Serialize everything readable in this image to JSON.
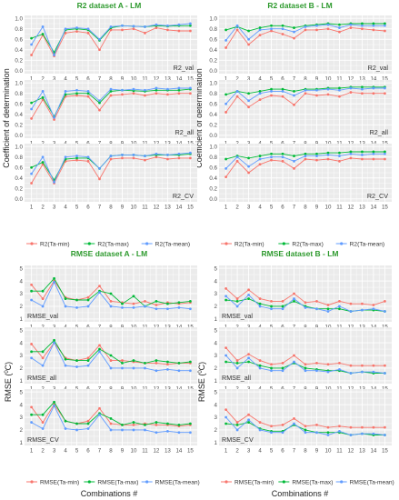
{
  "colors": {
    "min": "#F8766D",
    "max": "#00BA38",
    "mean": "#619CFF",
    "panel": "#EBEBEB",
    "grid": "#FFFFFF",
    "title": "#2E9A2E"
  },
  "labels": {
    "r2_ylabel": "Coefficient of determination",
    "rmse_ylabel_prefix": "RMSE (",
    "rmse_ylabel_sup": "0",
    "rmse_ylabel_suffix": "C)",
    "xlabel": "Combinations #"
  },
  "chart_data": [
    {
      "type": "line",
      "title": "R2 dataset A - LM",
      "x": [
        1,
        2,
        3,
        4,
        5,
        6,
        7,
        8,
        9,
        10,
        11,
        12,
        13,
        14,
        15
      ],
      "ylim": [
        0,
        1.0
      ],
      "yticks": [
        0.0,
        0.2,
        0.4,
        0.6,
        0.8,
        1.0
      ],
      "yticklabels": [
        "0.0",
        "0.2",
        "0.4",
        "0.6",
        "0.8",
        "1.0"
      ],
      "legend_names": [
        "R2(Ta-min)",
        "R2(Ta-max)",
        "R2(Ta-mean)"
      ],
      "panels": [
        {
          "label": "R2_val",
          "series": [
            {
              "key": "min",
              "values": [
                0.3,
                0.68,
                0.28,
                0.72,
                0.75,
                0.72,
                0.4,
                0.78,
                0.78,
                0.8,
                0.72,
                0.82,
                0.78,
                0.76,
                0.76
              ]
            },
            {
              "key": "max",
              "values": [
                0.62,
                0.7,
                0.35,
                0.78,
                0.8,
                0.78,
                0.58,
                0.82,
                0.86,
                0.85,
                0.84,
                0.86,
                0.85,
                0.86,
                0.86
              ]
            },
            {
              "key": "mean",
              "values": [
                0.5,
                0.84,
                0.3,
                0.8,
                0.82,
                0.8,
                0.6,
                0.84,
                0.86,
                0.85,
                0.84,
                0.88,
                0.86,
                0.88,
                0.9
              ]
            }
          ]
        },
        {
          "label": "R2_all",
          "series": [
            {
              "key": "min",
              "values": [
                0.32,
                0.68,
                0.3,
                0.74,
                0.76,
                0.74,
                0.48,
                0.76,
                0.78,
                0.8,
                0.76,
                0.8,
                0.78,
                0.8,
                0.8
              ]
            },
            {
              "key": "max",
              "values": [
                0.62,
                0.72,
                0.36,
                0.78,
                0.8,
                0.8,
                0.62,
                0.84,
                0.86,
                0.85,
                0.84,
                0.86,
                0.86,
                0.86,
                0.88
              ]
            },
            {
              "key": "mean",
              "values": [
                0.5,
                0.84,
                0.34,
                0.84,
                0.86,
                0.84,
                0.66,
                0.88,
                0.86,
                0.88,
                0.86,
                0.9,
                0.88,
                0.9,
                0.9
              ]
            }
          ]
        },
        {
          "label": "R2_CV",
          "series": [
            {
              "key": "min",
              "values": [
                0.3,
                0.66,
                0.3,
                0.72,
                0.74,
                0.72,
                0.38,
                0.76,
                0.78,
                0.78,
                0.74,
                0.8,
                0.76,
                0.78,
                0.78
              ]
            },
            {
              "key": "max",
              "values": [
                0.6,
                0.7,
                0.36,
                0.76,
                0.78,
                0.78,
                0.58,
                0.82,
                0.84,
                0.84,
                0.82,
                0.84,
                0.84,
                0.84,
                0.86
              ]
            },
            {
              "key": "mean",
              "values": [
                0.48,
                0.8,
                0.32,
                0.8,
                0.82,
                0.8,
                0.58,
                0.82,
                0.84,
                0.84,
                0.82,
                0.86,
                0.84,
                0.86,
                0.88
              ]
            }
          ]
        }
      ]
    },
    {
      "type": "line",
      "title": "R2 dataset B - LM",
      "x": [
        1,
        2,
        3,
        4,
        5,
        6,
        7,
        8,
        9,
        10,
        11,
        12,
        13,
        14,
        15
      ],
      "ylim": [
        0,
        1.0
      ],
      "yticks": [
        0.0,
        0.2,
        0.4,
        0.6,
        0.8,
        1.0
      ],
      "yticklabels": [
        "0.0",
        "0.2",
        "0.4",
        "0.6",
        "0.8",
        "1.0"
      ],
      "legend_names": [
        "R2(Ta-min)",
        "R2(Ta-max)",
        "R2(Ta-mean)"
      ],
      "panels": [
        {
          "label": "R2_val",
          "series": [
            {
              "key": "min",
              "values": [
                0.44,
                0.78,
                0.5,
                0.68,
                0.76,
                0.7,
                0.62,
                0.78,
                0.78,
                0.8,
                0.74,
                0.82,
                0.8,
                0.78,
                0.76
              ]
            },
            {
              "key": "max",
              "values": [
                0.78,
                0.84,
                0.76,
                0.82,
                0.86,
                0.86,
                0.82,
                0.86,
                0.88,
                0.9,
                0.88,
                0.9,
                0.9,
                0.9,
                0.9
              ]
            },
            {
              "key": "mean",
              "values": [
                0.58,
                0.86,
                0.6,
                0.78,
                0.8,
                0.8,
                0.74,
                0.84,
                0.86,
                0.88,
                0.82,
                0.88,
                0.86,
                0.86,
                0.86
              ]
            }
          ]
        },
        {
          "label": "R2_all",
          "series": [
            {
              "key": "min",
              "values": [
                0.44,
                0.74,
                0.54,
                0.68,
                0.76,
                0.74,
                0.58,
                0.8,
                0.76,
                0.78,
                0.74,
                0.82,
                0.8,
                0.8,
                0.8
              ]
            },
            {
              "key": "max",
              "values": [
                0.78,
                0.84,
                0.8,
                0.84,
                0.88,
                0.88,
                0.84,
                0.88,
                0.88,
                0.9,
                0.9,
                0.92,
                0.92,
                0.92,
                0.92
              ]
            },
            {
              "key": "mean",
              "values": [
                0.6,
                0.84,
                0.66,
                0.8,
                0.84,
                0.84,
                0.76,
                0.86,
                0.86,
                0.88,
                0.86,
                0.9,
                0.88,
                0.9,
                0.9
              ]
            }
          ]
        },
        {
          "label": "R2_CV",
          "series": [
            {
              "key": "min",
              "values": [
                0.42,
                0.72,
                0.5,
                0.66,
                0.74,
                0.72,
                0.58,
                0.76,
                0.74,
                0.76,
                0.72,
                0.78,
                0.76,
                0.76,
                0.76
              ]
            },
            {
              "key": "max",
              "values": [
                0.76,
                0.82,
                0.78,
                0.82,
                0.86,
                0.86,
                0.82,
                0.86,
                0.86,
                0.88,
                0.88,
                0.9,
                0.9,
                0.9,
                0.9
              ]
            },
            {
              "key": "mean",
              "values": [
                0.58,
                0.8,
                0.62,
                0.76,
                0.8,
                0.8,
                0.72,
                0.82,
                0.82,
                0.84,
                0.82,
                0.86,
                0.84,
                0.86,
                0.86
              ]
            }
          ]
        }
      ]
    },
    {
      "type": "line",
      "title": "RMSE dataset A - LM",
      "x": [
        1,
        2,
        3,
        4,
        5,
        6,
        7,
        8,
        9,
        10,
        11,
        12,
        13,
        14,
        15
      ],
      "ylim": [
        1,
        5
      ],
      "yticks": [
        1,
        2,
        3,
        4,
        5
      ],
      "yticklabels": [
        "1",
        "2",
        "3",
        "4",
        "5"
      ],
      "legend_names": [
        "RMSE(Ta-min)",
        "RMSE(Ta-max)",
        "RMSE(Ta-mean)"
      ],
      "panels": [
        {
          "label": "RMSE_val",
          "series": [
            {
              "key": "min",
              "values": [
                3.7,
                2.6,
                4.0,
                2.7,
                2.5,
                2.7,
                3.6,
                2.4,
                2.3,
                2.2,
                2.4,
                2.1,
                2.3,
                2.2,
                2.3
              ]
            },
            {
              "key": "max",
              "values": [
                3.2,
                3.2,
                4.2,
                2.6,
                2.5,
                2.5,
                3.2,
                3.0,
                2.2,
                2.8,
                2.0,
                2.4,
                2.2,
                2.3,
                2.4
              ]
            },
            {
              "key": "mean",
              "values": [
                2.5,
                2.0,
                3.9,
                2.0,
                1.9,
                2.0,
                3.1,
                2.0,
                1.9,
                1.9,
                2.0,
                1.8,
                1.8,
                1.9,
                1.8
              ]
            }
          ]
        },
        {
          "label": "RMSE_all",
          "series": [
            {
              "key": "min",
              "values": [
                3.9,
                2.8,
                4.0,
                2.8,
                2.6,
                2.8,
                3.8,
                2.6,
                2.6,
                2.5,
                2.4,
                2.4,
                2.3,
                2.4,
                2.4
              ]
            },
            {
              "key": "max",
              "values": [
                3.3,
                3.3,
                4.2,
                2.7,
                2.6,
                2.6,
                3.5,
                3.0,
                2.4,
                2.6,
                2.4,
                2.6,
                2.5,
                2.4,
                2.5
              ]
            },
            {
              "key": "mean",
              "values": [
                2.8,
                2.2,
                4.0,
                2.2,
                2.1,
                2.2,
                3.3,
                2.0,
                2.0,
                2.0,
                2.0,
                1.8,
                1.9,
                1.8,
                1.8
              ]
            }
          ]
        },
        {
          "label": "RMSE_CV",
          "series": [
            {
              "key": "min",
              "values": [
                3.8,
                2.6,
                4.0,
                2.7,
                2.5,
                2.7,
                3.7,
                2.5,
                2.4,
                2.4,
                2.5,
                2.4,
                2.4,
                2.3,
                2.4
              ]
            },
            {
              "key": "max",
              "values": [
                3.2,
                3.2,
                4.2,
                2.7,
                2.5,
                2.5,
                3.3,
                2.9,
                2.4,
                2.6,
                2.4,
                2.6,
                2.5,
                2.4,
                2.5
              ]
            },
            {
              "key": "mean",
              "values": [
                2.6,
                2.1,
                3.9,
                2.1,
                2.0,
                2.1,
                3.2,
                2.0,
                2.0,
                2.0,
                2.0,
                1.8,
                1.9,
                1.8,
                1.8
              ]
            }
          ]
        }
      ]
    },
    {
      "type": "line",
      "title": "RMSE dataset B - LM",
      "x": [
        1,
        2,
        3,
        4,
        5,
        6,
        7,
        8,
        9,
        10,
        11,
        12,
        13,
        14,
        15
      ],
      "ylim": [
        1,
        5
      ],
      "yticks": [
        1,
        2,
        3,
        4,
        5
      ],
      "yticklabels": [
        "1",
        "2",
        "3",
        "4",
        "5"
      ],
      "legend_names": [
        "RMSE(Ta-min)",
        "RMSE(Ta-max)",
        "RMSE(Ta-mean)"
      ],
      "panels": [
        {
          "label": "RMSE_val",
          "series": [
            {
              "key": "min",
              "values": [
                3.4,
                2.6,
                3.3,
                2.6,
                2.4,
                2.4,
                3.0,
                2.3,
                2.4,
                2.1,
                2.4,
                2.2,
                2.2,
                2.1,
                2.4
              ]
            },
            {
              "key": "max",
              "values": [
                2.5,
                2.4,
                2.6,
                2.2,
                2.0,
                2.0,
                2.4,
                2.0,
                1.8,
                1.8,
                1.8,
                1.6,
                1.7,
                1.7,
                1.6
              ]
            },
            {
              "key": "mean",
              "values": [
                2.8,
                2.0,
                2.9,
                2.0,
                1.8,
                1.8,
                2.6,
                1.9,
                1.8,
                1.6,
                2.0,
                1.6,
                1.7,
                1.8,
                1.6
              ]
            }
          ]
        },
        {
          "label": "RMSE_all",
          "series": [
            {
              "key": "min",
              "values": [
                3.6,
                2.6,
                3.1,
                2.6,
                2.3,
                2.4,
                3.0,
                2.3,
                2.4,
                2.3,
                2.4,
                2.2,
                2.2,
                2.2,
                2.2
              ]
            },
            {
              "key": "max",
              "values": [
                2.5,
                2.4,
                2.5,
                2.2,
                2.0,
                2.0,
                2.4,
                2.0,
                1.9,
                1.8,
                1.8,
                1.6,
                1.7,
                1.6,
                1.6
              ]
            },
            {
              "key": "mean",
              "values": [
                3.0,
                2.0,
                2.8,
                2.0,
                1.8,
                1.8,
                2.5,
                1.8,
                1.8,
                1.7,
                1.9,
                1.6,
                1.7,
                1.7,
                1.6
              ]
            }
          ]
        },
        {
          "label": "RMSE_CV",
          "series": [
            {
              "key": "min",
              "values": [
                3.6,
                2.6,
                3.2,
                2.6,
                2.3,
                2.4,
                2.9,
                2.3,
                2.4,
                2.2,
                2.3,
                2.2,
                2.2,
                2.2,
                2.2
              ]
            },
            {
              "key": "max",
              "values": [
                2.5,
                2.4,
                2.6,
                2.1,
                1.9,
                1.9,
                2.4,
                2.0,
                1.8,
                1.8,
                1.8,
                1.6,
                1.7,
                1.6,
                1.6
              ]
            },
            {
              "key": "mean",
              "values": [
                3.0,
                2.0,
                2.8,
                2.0,
                1.8,
                1.8,
                2.5,
                1.8,
                1.8,
                1.6,
                1.9,
                1.6,
                1.7,
                1.7,
                1.6
              ]
            }
          ]
        }
      ]
    }
  ]
}
